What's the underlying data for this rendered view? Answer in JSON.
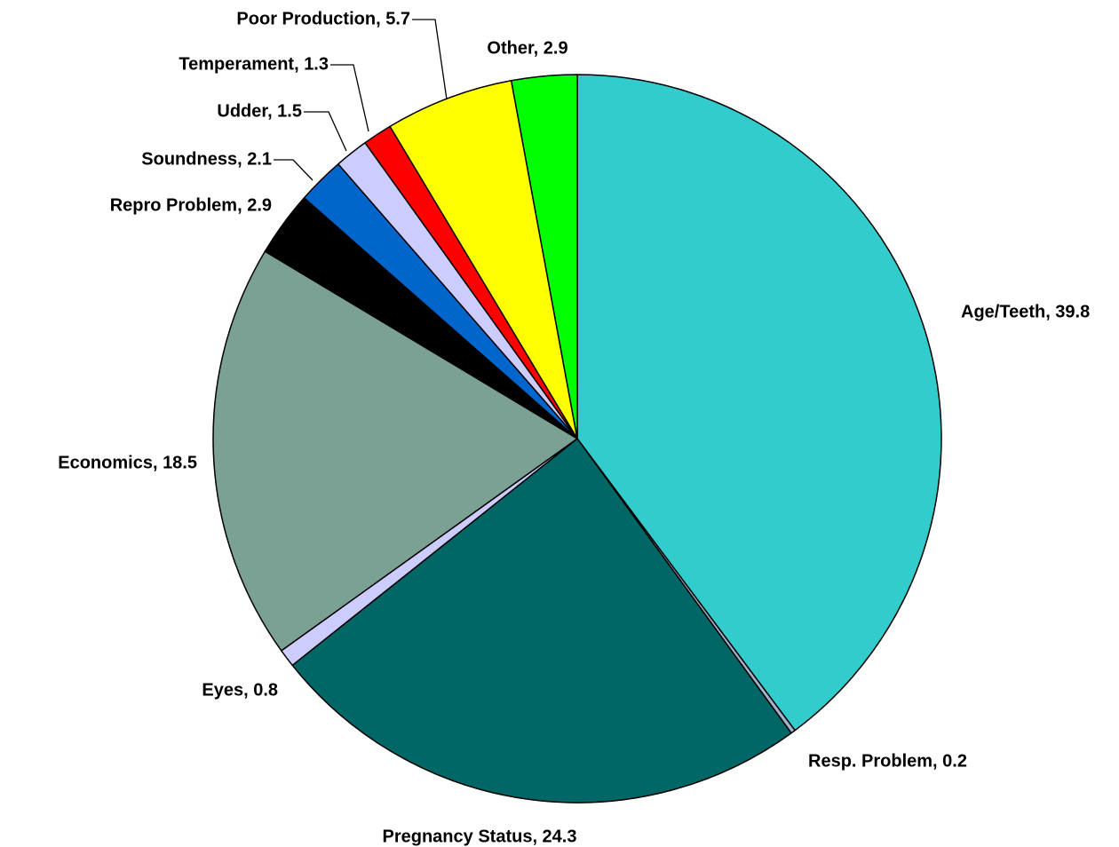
{
  "chart_data": {
    "type": "pie",
    "values": [
      39.8,
      0.2,
      24.3,
      0.8,
      18.5,
      2.9,
      2.1,
      1.5,
      1.3,
      5.7,
      2.9
    ],
    "value_labels": [
      "Age/Teeth, 39.8",
      "Resp. Problem, 0.2",
      "Pregnancy Status, 24.3",
      "Eyes, 0.8",
      "Economics, 18.5",
      "Repro Problem, 2.9",
      "Soundness, 2.1",
      "Udder, 1.5",
      "Temperament, 1.3",
      "Poor Production, 5.7",
      "Other, 2.9"
    ],
    "colors": [
      "#33cccc",
      "#a3b3cc",
      "#006666",
      "#ccccff",
      "#7aa193",
      "#000000",
      "#0066cc",
      "#ccccff",
      "#ff0000",
      "#ffff00",
      "#00ff00"
    ],
    "start_angle": 0,
    "direction": "clockwise"
  }
}
